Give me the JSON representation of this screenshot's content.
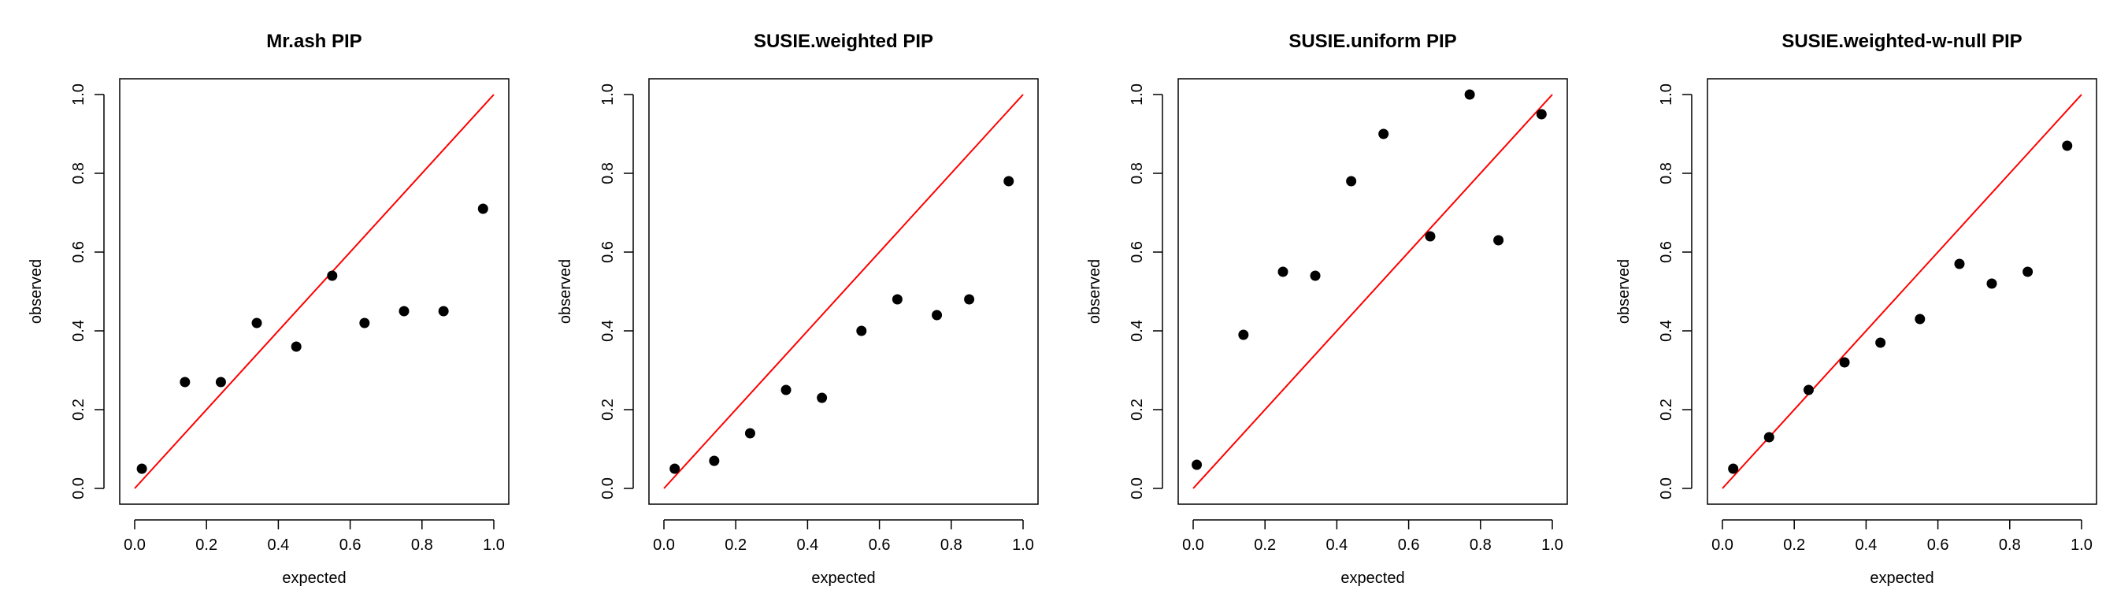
{
  "chart_data": [
    {
      "type": "scatter",
      "title": "Mr.ash PIP",
      "xlabel": "expected",
      "ylabel": "observed",
      "xlim": [
        0,
        1
      ],
      "ylim": [
        0,
        1
      ],
      "x_ticks": [
        "0.0",
        "0.2",
        "0.4",
        "0.6",
        "0.8",
        "1.0"
      ],
      "y_ticks": [
        "0.0",
        "0.2",
        "0.4",
        "0.6",
        "0.8",
        "1.0"
      ],
      "reference_line": {
        "from": [
          0,
          0
        ],
        "to": [
          1,
          1
        ],
        "color": "#ff0000"
      },
      "point_color": "#000000",
      "points": [
        {
          "x": 0.02,
          "y": 0.05
        },
        {
          "x": 0.14,
          "y": 0.27
        },
        {
          "x": 0.24,
          "y": 0.27
        },
        {
          "x": 0.34,
          "y": 0.42
        },
        {
          "x": 0.45,
          "y": 0.36
        },
        {
          "x": 0.55,
          "y": 0.54
        },
        {
          "x": 0.64,
          "y": 0.42
        },
        {
          "x": 0.75,
          "y": 0.45
        },
        {
          "x": 0.86,
          "y": 0.45
        },
        {
          "x": 0.97,
          "y": 0.71
        }
      ]
    },
    {
      "type": "scatter",
      "title": "SUSIE.weighted PIP",
      "xlabel": "expected",
      "ylabel": "observed",
      "xlim": [
        0,
        1
      ],
      "ylim": [
        0,
        1
      ],
      "x_ticks": [
        "0.0",
        "0.2",
        "0.4",
        "0.6",
        "0.8",
        "1.0"
      ],
      "y_ticks": [
        "0.0",
        "0.2",
        "0.4",
        "0.6",
        "0.8",
        "1.0"
      ],
      "reference_line": {
        "from": [
          0,
          0
        ],
        "to": [
          1,
          1
        ],
        "color": "#ff0000"
      },
      "point_color": "#000000",
      "points": [
        {
          "x": 0.03,
          "y": 0.05
        },
        {
          "x": 0.14,
          "y": 0.07
        },
        {
          "x": 0.24,
          "y": 0.14
        },
        {
          "x": 0.34,
          "y": 0.25
        },
        {
          "x": 0.44,
          "y": 0.23
        },
        {
          "x": 0.55,
          "y": 0.4
        },
        {
          "x": 0.65,
          "y": 0.48
        },
        {
          "x": 0.76,
          "y": 0.44
        },
        {
          "x": 0.85,
          "y": 0.48
        },
        {
          "x": 0.96,
          "y": 0.78
        }
      ]
    },
    {
      "type": "scatter",
      "title": "SUSIE.uniform PIP",
      "xlabel": "expected",
      "ylabel": "observed",
      "xlim": [
        0,
        1
      ],
      "ylim": [
        0,
        1
      ],
      "x_ticks": [
        "0.0",
        "0.2",
        "0.4",
        "0.6",
        "0.8",
        "1.0"
      ],
      "y_ticks": [
        "0.0",
        "0.2",
        "0.4",
        "0.6",
        "0.8",
        "1.0"
      ],
      "reference_line": {
        "from": [
          0,
          0
        ],
        "to": [
          1,
          1
        ],
        "color": "#ff0000"
      },
      "point_color": "#000000",
      "points": [
        {
          "x": 0.01,
          "y": 0.06
        },
        {
          "x": 0.14,
          "y": 0.39
        },
        {
          "x": 0.25,
          "y": 0.55
        },
        {
          "x": 0.34,
          "y": 0.54
        },
        {
          "x": 0.44,
          "y": 0.78
        },
        {
          "x": 0.53,
          "y": 0.9
        },
        {
          "x": 0.66,
          "y": 0.64
        },
        {
          "x": 0.77,
          "y": 1.0
        },
        {
          "x": 0.85,
          "y": 0.63
        },
        {
          "x": 0.97,
          "y": 0.95
        }
      ]
    },
    {
      "type": "scatter",
      "title": "SUSIE.weighted-w-null PIP",
      "xlabel": "expected",
      "ylabel": "observed",
      "xlim": [
        0,
        1
      ],
      "ylim": [
        0,
        1
      ],
      "x_ticks": [
        "0.0",
        "0.2",
        "0.4",
        "0.6",
        "0.8",
        "1.0"
      ],
      "y_ticks": [
        "0.0",
        "0.2",
        "0.4",
        "0.6",
        "0.8",
        "1.0"
      ],
      "reference_line": {
        "from": [
          0,
          0
        ],
        "to": [
          1,
          1
        ],
        "color": "#ff0000"
      },
      "point_color": "#000000",
      "points": [
        {
          "x": 0.03,
          "y": 0.05
        },
        {
          "x": 0.13,
          "y": 0.13
        },
        {
          "x": 0.24,
          "y": 0.25
        },
        {
          "x": 0.34,
          "y": 0.32
        },
        {
          "x": 0.44,
          "y": 0.37
        },
        {
          "x": 0.55,
          "y": 0.43
        },
        {
          "x": 0.66,
          "y": 0.57
        },
        {
          "x": 0.75,
          "y": 0.52
        },
        {
          "x": 0.85,
          "y": 0.55
        },
        {
          "x": 0.96,
          "y": 0.87
        }
      ]
    }
  ]
}
